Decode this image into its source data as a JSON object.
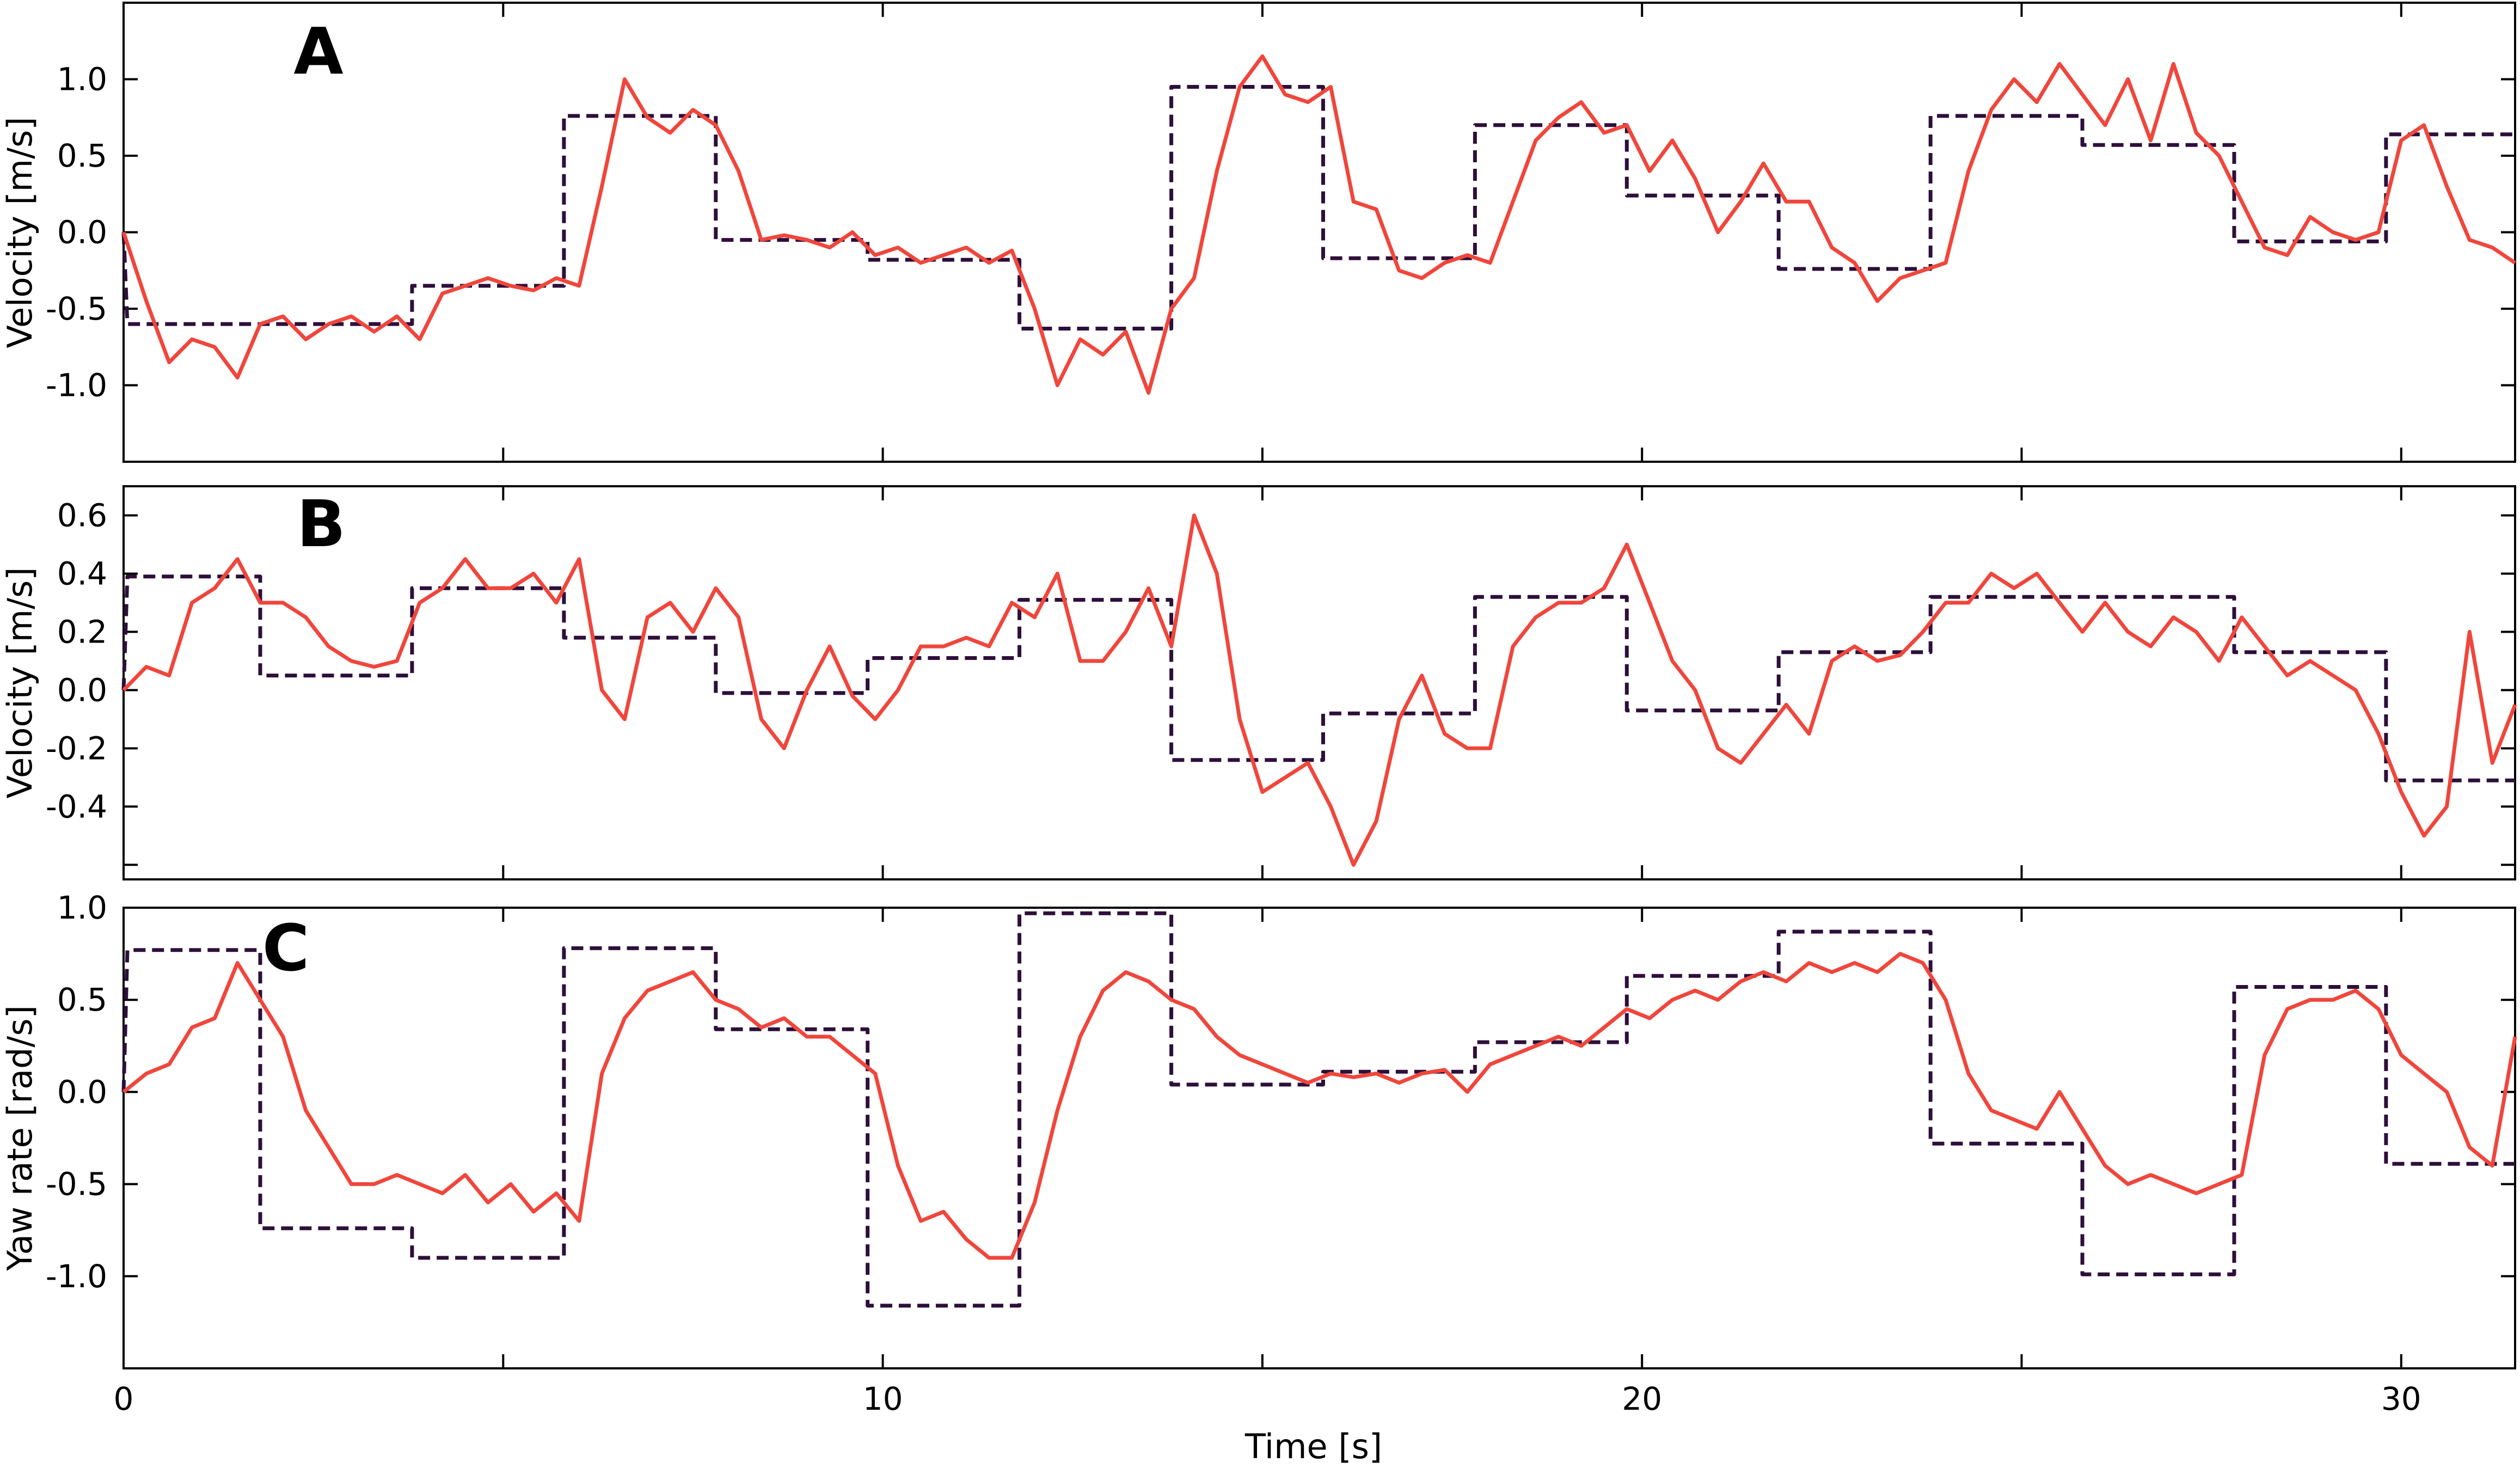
{
  "colors": {
    "measured": "#f0463c",
    "command": "#2e0f3a",
    "frame": "#000000"
  },
  "chart_data": [
    {
      "type": "line",
      "panel_label": "A",
      "ylabel": "Velocity [m/s]",
      "ylim": [
        -1.5,
        1.5
      ],
      "yticks": [
        -1.0,
        -0.5,
        0.0,
        0.5,
        1.0
      ],
      "ytick_labels": [
        "-1.0",
        "-0.5",
        "0.0",
        "0.5",
        "1.0"
      ],
      "xlim": [
        0,
        31.5
      ],
      "xticks": [
        0,
        5,
        10,
        15,
        20,
        25,
        30
      ],
      "show_xtick_labels": false,
      "series": [
        {
          "style": "dashed",
          "x": [
            0,
            0.05,
            1.8,
            1.8,
            3.8,
            3.8,
            5.8,
            5.8,
            7.8,
            7.8,
            9.8,
            9.8,
            11.8,
            11.8,
            13.8,
            13.8,
            15.8,
            15.8,
            17.8,
            17.8,
            19.8,
            19.8,
            21.8,
            21.8,
            23.8,
            23.8,
            25.8,
            25.8,
            27.8,
            27.8,
            29.8,
            29.8,
            31.5
          ],
          "y": [
            0.0,
            -0.6,
            -0.6,
            -0.6,
            -0.6,
            -0.35,
            -0.35,
            0.76,
            0.76,
            -0.05,
            -0.05,
            -0.18,
            -0.18,
            -0.63,
            -0.63,
            0.95,
            0.95,
            -0.17,
            -0.17,
            0.7,
            0.7,
            0.24,
            0.24,
            -0.24,
            -0.24,
            0.76,
            0.76,
            0.57,
            0.57,
            -0.06,
            -0.06,
            0.64,
            0.64
          ]
        },
        {
          "style": "solid",
          "x": [
            0,
            0.3,
            0.6,
            0.9,
            1.2,
            1.5,
            1.8,
            2.1,
            2.4,
            2.7,
            3.0,
            3.3,
            3.6,
            3.9,
            4.2,
            4.5,
            4.8,
            5.1,
            5.4,
            5.7,
            6.0,
            6.3,
            6.6,
            6.9,
            7.2,
            7.5,
            7.8,
            8.1,
            8.4,
            8.7,
            9.0,
            9.3,
            9.6,
            9.9,
            10.2,
            10.5,
            10.8,
            11.1,
            11.4,
            11.7,
            12.0,
            12.3,
            12.6,
            12.9,
            13.2,
            13.5,
            13.8,
            14.1,
            14.4,
            14.7,
            15.0,
            15.3,
            15.6,
            15.9,
            16.2,
            16.5,
            16.8,
            17.1,
            17.4,
            17.7,
            18.0,
            18.3,
            18.6,
            18.9,
            19.2,
            19.5,
            19.8,
            20.1,
            20.4,
            20.7,
            21.0,
            21.3,
            21.6,
            21.9,
            22.2,
            22.5,
            22.8,
            23.1,
            23.4,
            23.7,
            24.0,
            24.3,
            24.6,
            24.9,
            25.2,
            25.5,
            25.8,
            26.1,
            26.4,
            26.7,
            27.0,
            27.3,
            27.6,
            27.9,
            28.2,
            28.5,
            28.8,
            29.1,
            29.4,
            29.7,
            30.0,
            30.3,
            30.6,
            30.9,
            31.2,
            31.5
          ],
          "y": [
            0.0,
            -0.45,
            -0.85,
            -0.7,
            -0.75,
            -0.95,
            -0.6,
            -0.55,
            -0.7,
            -0.6,
            -0.55,
            -0.65,
            -0.55,
            -0.7,
            -0.4,
            -0.35,
            -0.3,
            -0.35,
            -0.38,
            -0.3,
            -0.35,
            0.3,
            1.0,
            0.75,
            0.65,
            0.8,
            0.7,
            0.4,
            -0.05,
            -0.02,
            -0.05,
            -0.1,
            0.0,
            -0.15,
            -0.1,
            -0.2,
            -0.15,
            -0.1,
            -0.2,
            -0.12,
            -0.5,
            -1.0,
            -0.7,
            -0.8,
            -0.65,
            -1.05,
            -0.5,
            -0.3,
            0.4,
            0.95,
            1.15,
            0.9,
            0.85,
            0.95,
            0.2,
            0.15,
            -0.25,
            -0.3,
            -0.2,
            -0.15,
            -0.2,
            0.2,
            0.6,
            0.75,
            0.85,
            0.65,
            0.7,
            0.4,
            0.6,
            0.35,
            0.0,
            0.2,
            0.45,
            0.2,
            0.2,
            -0.1,
            -0.2,
            -0.45,
            -0.3,
            -0.25,
            -0.2,
            0.4,
            0.8,
            1.0,
            0.85,
            1.1,
            0.9,
            0.7,
            1.0,
            0.6,
            1.1,
            0.65,
            0.5,
            0.2,
            -0.1,
            -0.15,
            0.1,
            0.0,
            -0.05,
            0.0,
            0.6,
            0.7,
            0.3,
            -0.05,
            -0.1,
            -0.2
          ]
        }
      ]
    },
    {
      "type": "line",
      "panel_label": "B",
      "ylabel": "Velocity [m/s]",
      "ylim": [
        -0.65,
        0.7
      ],
      "yticks": [
        -0.4,
        -0.2,
        0.0,
        0.2,
        0.4,
        0.6
      ],
      "ytick_labels": [
        "-0.4",
        "-0.2",
        "0.0",
        "0.2",
        "0.4",
        "0.6"
      ],
      "extra_yticks": [
        -0.6
      ],
      "xlim": [
        0,
        31.5
      ],
      "xticks": [
        0,
        5,
        10,
        15,
        20,
        25,
        30
      ],
      "show_xtick_labels": false,
      "series": [
        {
          "style": "dashed",
          "x": [
            0,
            0.05,
            1.8,
            1.8,
            3.8,
            3.8,
            5.8,
            5.8,
            7.8,
            7.8,
            9.8,
            9.8,
            11.8,
            11.8,
            13.8,
            13.8,
            15.8,
            15.8,
            17.8,
            17.8,
            19.8,
            19.8,
            21.8,
            21.8,
            23.8,
            23.8,
            25.8,
            25.8,
            27.8,
            27.8,
            29.8,
            29.8,
            31.5
          ],
          "y": [
            0.0,
            0.39,
            0.39,
            0.05,
            0.05,
            0.35,
            0.35,
            0.18,
            0.18,
            -0.01,
            -0.01,
            0.11,
            0.11,
            0.31,
            0.31,
            -0.24,
            -0.24,
            -0.08,
            -0.08,
            0.32,
            0.32,
            -0.07,
            -0.07,
            0.13,
            0.13,
            0.32,
            0.32,
            0.32,
            0.32,
            0.13,
            0.13,
            -0.31,
            -0.31
          ]
        },
        {
          "style": "solid",
          "x": [
            0,
            0.3,
            0.6,
            0.9,
            1.2,
            1.5,
            1.8,
            2.1,
            2.4,
            2.7,
            3.0,
            3.3,
            3.6,
            3.9,
            4.2,
            4.5,
            4.8,
            5.1,
            5.4,
            5.7,
            6.0,
            6.3,
            6.6,
            6.9,
            7.2,
            7.5,
            7.8,
            8.1,
            8.4,
            8.7,
            9.0,
            9.3,
            9.6,
            9.9,
            10.2,
            10.5,
            10.8,
            11.1,
            11.4,
            11.7,
            12.0,
            12.3,
            12.6,
            12.9,
            13.2,
            13.5,
            13.8,
            14.1,
            14.4,
            14.7,
            15.0,
            15.3,
            15.6,
            15.9,
            16.2,
            16.5,
            16.8,
            17.1,
            17.4,
            17.7,
            18.0,
            18.3,
            18.6,
            18.9,
            19.2,
            19.5,
            19.8,
            20.1,
            20.4,
            20.7,
            21.0,
            21.3,
            21.6,
            21.9,
            22.2,
            22.5,
            22.8,
            23.1,
            23.4,
            23.7,
            24.0,
            24.3,
            24.6,
            24.9,
            25.2,
            25.5,
            25.8,
            26.1,
            26.4,
            26.7,
            27.0,
            27.3,
            27.6,
            27.9,
            28.2,
            28.5,
            28.8,
            29.1,
            29.4,
            29.7,
            30.0,
            30.3,
            30.6,
            30.9,
            31.2,
            31.5
          ],
          "y": [
            0.0,
            0.08,
            0.05,
            0.3,
            0.35,
            0.45,
            0.3,
            0.3,
            0.25,
            0.15,
            0.1,
            0.08,
            0.1,
            0.3,
            0.35,
            0.45,
            0.35,
            0.35,
            0.4,
            0.3,
            0.45,
            0.0,
            -0.1,
            0.25,
            0.3,
            0.2,
            0.35,
            0.25,
            -0.1,
            -0.2,
            0.0,
            0.15,
            -0.02,
            -0.1,
            0.0,
            0.15,
            0.15,
            0.18,
            0.15,
            0.3,
            0.25,
            0.4,
            0.1,
            0.1,
            0.2,
            0.35,
            0.15,
            0.6,
            0.4,
            -0.1,
            -0.35,
            -0.3,
            -0.25,
            -0.4,
            -0.6,
            -0.45,
            -0.1,
            0.05,
            -0.15,
            -0.2,
            -0.2,
            0.15,
            0.25,
            0.3,
            0.3,
            0.35,
            0.5,
            0.3,
            0.1,
            0.0,
            -0.2,
            -0.25,
            -0.15,
            -0.05,
            -0.15,
            0.1,
            0.15,
            0.1,
            0.12,
            0.2,
            0.3,
            0.3,
            0.4,
            0.35,
            0.4,
            0.3,
            0.2,
            0.3,
            0.2,
            0.15,
            0.25,
            0.2,
            0.1,
            0.25,
            0.15,
            0.05,
            0.1,
            0.05,
            0.0,
            -0.15,
            -0.35,
            -0.5,
            -0.4,
            0.2,
            -0.25,
            -0.05
          ]
        }
      ]
    },
    {
      "type": "line",
      "panel_label": "C",
      "ylabel": "Yaw rate [rad/s]",
      "xlabel": "Time [s]",
      "ylim": [
        -1.5,
        1.0
      ],
      "yticks": [
        -1.0,
        -0.5,
        0.0,
        0.5,
        1.0
      ],
      "ytick_labels": [
        "-1.0",
        "-0.5",
        "0.0",
        "0.5",
        "1.0"
      ],
      "xlim": [
        0,
        31.5
      ],
      "xticks": [
        0,
        5,
        10,
        15,
        20,
        25,
        30
      ],
      "xtick_labels": [
        "0",
        "",
        "10",
        "",
        "20",
        "",
        "30"
      ],
      "show_xtick_labels": true,
      "series": [
        {
          "style": "dashed",
          "x": [
            0,
            0.05,
            1.8,
            1.8,
            3.8,
            3.8,
            5.8,
            5.8,
            7.8,
            7.8,
            9.8,
            9.8,
            11.8,
            11.8,
            13.8,
            13.8,
            15.8,
            15.8,
            17.8,
            17.8,
            19.8,
            19.8,
            21.8,
            21.8,
            23.8,
            23.8,
            25.8,
            25.8,
            27.8,
            27.8,
            29.8,
            29.8,
            31.5
          ],
          "y": [
            0.0,
            0.77,
            0.77,
            -0.74,
            -0.74,
            -0.9,
            -0.9,
            0.78,
            0.78,
            0.34,
            0.34,
            -1.16,
            -1.16,
            0.97,
            0.97,
            0.04,
            0.04,
            0.11,
            0.11,
            0.27,
            0.27,
            0.63,
            0.63,
            0.87,
            0.87,
            -0.28,
            -0.28,
            -0.99,
            -0.99,
            0.57,
            0.57,
            -0.39,
            -0.39
          ]
        },
        {
          "style": "solid",
          "x": [
            0,
            0.3,
            0.6,
            0.9,
            1.2,
            1.5,
            1.8,
            2.1,
            2.4,
            2.7,
            3.0,
            3.3,
            3.6,
            3.9,
            4.2,
            4.5,
            4.8,
            5.1,
            5.4,
            5.7,
            6.0,
            6.3,
            6.6,
            6.9,
            7.2,
            7.5,
            7.8,
            8.1,
            8.4,
            8.7,
            9.0,
            9.3,
            9.6,
            9.9,
            10.2,
            10.5,
            10.8,
            11.1,
            11.4,
            11.7,
            12.0,
            12.3,
            12.6,
            12.9,
            13.2,
            13.5,
            13.8,
            14.1,
            14.4,
            14.7,
            15.0,
            15.3,
            15.6,
            15.9,
            16.2,
            16.5,
            16.8,
            17.1,
            17.4,
            17.7,
            18.0,
            18.3,
            18.6,
            18.9,
            19.2,
            19.5,
            19.8,
            20.1,
            20.4,
            20.7,
            21.0,
            21.3,
            21.6,
            21.9,
            22.2,
            22.5,
            22.8,
            23.1,
            23.4,
            23.7,
            24.0,
            24.3,
            24.6,
            24.9,
            25.2,
            25.5,
            25.8,
            26.1,
            26.4,
            26.7,
            27.0,
            27.3,
            27.6,
            27.9,
            28.2,
            28.5,
            28.8,
            29.1,
            29.4,
            29.7,
            30.0,
            30.3,
            30.6,
            30.9,
            31.2,
            31.5
          ],
          "y": [
            0.0,
            0.1,
            0.15,
            0.35,
            0.4,
            0.7,
            0.5,
            0.3,
            -0.1,
            -0.3,
            -0.5,
            -0.5,
            -0.45,
            -0.5,
            -0.55,
            -0.45,
            -0.6,
            -0.5,
            -0.65,
            -0.55,
            -0.7,
            0.1,
            0.4,
            0.55,
            0.6,
            0.65,
            0.5,
            0.45,
            0.35,
            0.4,
            0.3,
            0.3,
            0.2,
            0.1,
            -0.4,
            -0.7,
            -0.65,
            -0.8,
            -0.9,
            -0.9,
            -0.6,
            -0.1,
            0.3,
            0.55,
            0.65,
            0.6,
            0.5,
            0.45,
            0.3,
            0.2,
            0.15,
            0.1,
            0.05,
            0.1,
            0.08,
            0.1,
            0.05,
            0.1,
            0.12,
            0.0,
            0.15,
            0.2,
            0.25,
            0.3,
            0.25,
            0.35,
            0.45,
            0.4,
            0.5,
            0.55,
            0.5,
            0.6,
            0.65,
            0.6,
            0.7,
            0.65,
            0.7,
            0.65,
            0.75,
            0.7,
            0.5,
            0.1,
            -0.1,
            -0.15,
            -0.2,
            0.0,
            -0.2,
            -0.4,
            -0.5,
            -0.45,
            -0.5,
            -0.55,
            -0.5,
            -0.45,
            0.2,
            0.45,
            0.5,
            0.5,
            0.55,
            0.45,
            0.2,
            0.1,
            0.0,
            -0.3,
            -0.4,
            0.3
          ]
        }
      ]
    }
  ]
}
